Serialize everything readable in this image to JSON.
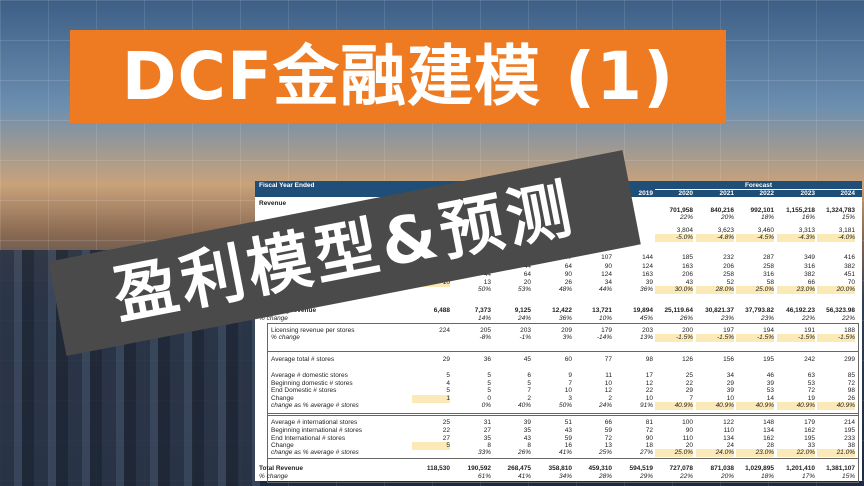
{
  "title": "DCF金融建模 (1)",
  "subtitle": "盈利模型&预测",
  "colors": {
    "title_bg": "#ee7a22",
    "subtitle_bg": "#4a4a4a",
    "header_bg": "#1f4e79",
    "forecast_input": "#fbe9b7"
  },
  "sheet": {
    "header_label": "Fiscal Year Ended",
    "forecast_label": "Forecast",
    "years": [
      "",
      "",
      "",
      "",
      "",
      "2019",
      "2020",
      "2021",
      "2022",
      "2023",
      "2024"
    ],
    "rows": [
      {
        "label": "Revenue",
        "cells": [
          "",
          "",
          "",
          "",
          "",
          "",
          "",
          "",
          "",
          "",
          ""
        ],
        "style": "bold"
      },
      {
        "label": "",
        "cells": [
          "",
          "",
          "",
          "",
          "",
          "",
          "701,958",
          "840,216",
          "992,101",
          "1,155,218",
          "1,324,783"
        ],
        "style": "bold"
      },
      {
        "label": "",
        "cells": [
          "",
          "",
          "",
          "",
          "",
          "",
          "22%",
          "20%",
          "18%",
          "16%",
          "15%"
        ],
        "style": "ital"
      },
      {
        "label": "",
        "cells": [
          "",
          "",
          "",
          "",
          "",
          "",
          "3,804",
          "3,623",
          "3,460",
          "3,313",
          "3,181"
        ]
      },
      {
        "label": "",
        "cells": [
          "",
          "",
          "",
          "",
          "",
          "",
          "-5.0%",
          "-4.8%",
          "-4.5%",
          "-4.3%",
          "-4.0%"
        ],
        "style": "ital",
        "yellow": true
      },
      {
        "label": "",
        "cells": [
          "",
          "",
          "",
          "77",
          "107",
          "144",
          "185",
          "232",
          "287",
          "349",
          "416"
        ]
      },
      {
        "label": "",
        "cells": [
          "",
          "",
          "44",
          "64",
          "90",
          "124",
          "163",
          "206",
          "258",
          "316",
          "382"
        ]
      },
      {
        "label": "",
        "cells": [
          "",
          "44",
          "64",
          "90",
          "124",
          "163",
          "206",
          "258",
          "316",
          "382",
          "451"
        ]
      },
      {
        "label": "",
        "cells": [
          "10",
          "13",
          "20",
          "26",
          "34",
          "39",
          "43",
          "52",
          "58",
          "66",
          "70"
        ],
        "y0": true
      },
      {
        "label": "",
        "cells": [
          "",
          "50%",
          "53%",
          "48%",
          "44%",
          "36%",
          "30.0%",
          "28.0%",
          "25.0%",
          "23.0%",
          "20.0%"
        ],
        "style": "ital",
        "yellow": true
      },
      {
        "label": "Licensing revenue",
        "cells": [
          "6,488",
          "7,373",
          "9,125",
          "12,422",
          "13,721",
          "19,894",
          "25,119.64",
          "30,821.37",
          "37,793.82",
          "46,192.23",
          "56,323.98"
        ],
        "style": "bold"
      },
      {
        "label": "% change",
        "cells": [
          "",
          "14%",
          "24%",
          "36%",
          "10%",
          "45%",
          "26%",
          "23%",
          "23%",
          "22%",
          "22%"
        ],
        "style": "ital"
      },
      {
        "label": "Licensing revenue per stores",
        "cells": [
          "224",
          "205",
          "203",
          "209",
          "179",
          "203",
          "200",
          "197",
          "194",
          "191",
          "188"
        ]
      },
      {
        "label": "  % change",
        "cells": [
          "",
          "-8%",
          "-1%",
          "3%",
          "-14%",
          "13%",
          "-1.5%",
          "-1.5%",
          "-1.5%",
          "-1.5%",
          "-1.5%"
        ],
        "style": "ital",
        "yellow": true
      },
      {
        "label": "Average total # stores",
        "cells": [
          "29",
          "36",
          "45",
          "60",
          "77",
          "98",
          "126",
          "156",
          "195",
          "242",
          "299"
        ]
      },
      {
        "label": "Average # domestic stores",
        "cells": [
          "5",
          "5",
          "6",
          "9",
          "11",
          "17",
          "25",
          "34",
          "46",
          "63",
          "85"
        ]
      },
      {
        "label": "Beginning domestic # stores",
        "cells": [
          "4",
          "5",
          "5",
          "7",
          "10",
          "12",
          "22",
          "29",
          "39",
          "53",
          "72"
        ]
      },
      {
        "label": "End Domestic # stores",
        "cells": [
          "5",
          "5",
          "7",
          "10",
          "12",
          "22",
          "29",
          "39",
          "53",
          "72",
          "98"
        ]
      },
      {
        "label": "Change",
        "cells": [
          "1",
          "0",
          "2",
          "3",
          "2",
          "10",
          "7",
          "10",
          "14",
          "19",
          "26"
        ],
        "y0": true
      },
      {
        "label": "  change as % average # stores",
        "cells": [
          "",
          "0%",
          "40%",
          "50%",
          "24%",
          "91%",
          "40.9%",
          "40.9%",
          "40.9%",
          "40.9%",
          "40.9%"
        ],
        "style": "ital",
        "yellow": true
      },
      {
        "label": "Average # international stores",
        "cells": [
          "25",
          "31",
          "39",
          "51",
          "66",
          "81",
          "100",
          "122",
          "148",
          "179",
          "214"
        ]
      },
      {
        "label": "Beginning international # stores",
        "cells": [
          "22",
          "27",
          "35",
          "43",
          "59",
          "72",
          "90",
          "110",
          "134",
          "162",
          "195"
        ]
      },
      {
        "label": "End International # stores",
        "cells": [
          "27",
          "35",
          "43",
          "59",
          "72",
          "90",
          "110",
          "134",
          "162",
          "195",
          "233"
        ]
      },
      {
        "label": "Change",
        "cells": [
          "5",
          "8",
          "8",
          "16",
          "13",
          "18",
          "20",
          "24",
          "28",
          "33",
          "38"
        ],
        "y0": true
      },
      {
        "label": "  change as % average # stores",
        "cells": [
          "",
          "33%",
          "26%",
          "41%",
          "25%",
          "27%",
          "25.0%",
          "24.0%",
          "23.0%",
          "22.0%",
          "21.0%"
        ],
        "style": "ital",
        "yellow": true
      },
      {
        "label": "Total Revenue",
        "cells": [
          "118,530",
          "190,592",
          "268,475",
          "358,810",
          "459,310",
          "594,519",
          "727,078",
          "871,038",
          "1,029,895",
          "1,201,410",
          "1,381,107"
        ],
        "style": "bold"
      },
      {
        "label": "% change",
        "cells": [
          "",
          "61%",
          "41%",
          "34%",
          "28%",
          "29%",
          "22%",
          "20%",
          "18%",
          "17%",
          "15%"
        ],
        "style": "ital"
      }
    ]
  }
}
